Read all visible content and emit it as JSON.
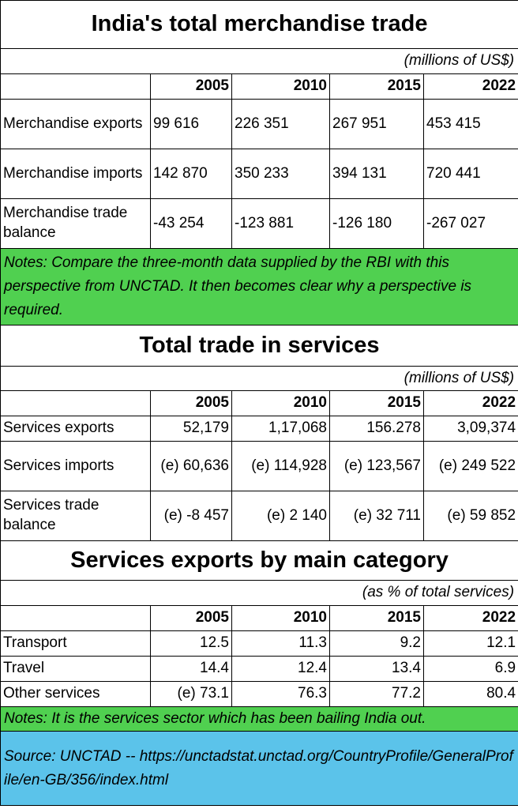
{
  "merch": {
    "title": "India's total merchandise trade",
    "units": "(millions of US$)",
    "years": [
      "2005",
      "2010",
      "2015",
      "2022"
    ],
    "rows": [
      {
        "label": "Merchandise exports",
        "values": [
          "99 616",
          "226 351",
          "267 951",
          "453 415"
        ]
      },
      {
        "label": "Merchandise imports",
        "values": [
          "142 870",
          "350 233",
          "394 131",
          "720 441"
        ]
      },
      {
        "label": "Merchandise trade balance",
        "values": [
          "-43 254",
          "-123 881",
          "-126 180",
          "-267 027"
        ]
      }
    ],
    "notes": "Notes:  Compare the three-month data supplied by the RBI with this perspective from UNCTAD.  It then becomes clear why a perspective is required."
  },
  "services": {
    "title": "Total trade in services",
    "units": "(millions of US$)",
    "years": [
      "2005",
      "2010",
      "2015",
      "2022"
    ],
    "rows": [
      {
        "label": "Services exports",
        "values": [
          "52,179",
          "1,17,068",
          "156.278",
          "3,09,374"
        ]
      },
      {
        "label": "Services imports",
        "values": [
          "(e) 60,636",
          "(e) 114,928",
          "(e) 123,567",
          "(e) 249 522"
        ]
      },
      {
        "label": "Services trade balance",
        "values": [
          "(e) -8 457",
          "(e) 2 140",
          "(e) 32 711",
          "(e) 59 852"
        ]
      }
    ]
  },
  "categories": {
    "title": "Services exports by main category",
    "units": "(as % of total services)",
    "years": [
      "2005",
      "2010",
      "2015",
      "2022"
    ],
    "rows": [
      {
        "label": "Transport",
        "values": [
          "12.5",
          "11.3",
          "9.2",
          "12.1"
        ]
      },
      {
        "label": "Travel",
        "values": [
          "14.4",
          "12.4",
          "13.4",
          "6.9"
        ]
      },
      {
        "label": "Other services",
        "values": [
          "(e) 73.1",
          "76.3",
          "77.2",
          "80.4"
        ]
      }
    ],
    "notes": "Notes: It is the services sector which has been bailing India out."
  },
  "source": "Source: UNCTAD -- https://unctadstat.unctad.org/CountryProfile/GeneralProfile/en-GB/356/index.html",
  "colors": {
    "notes_bg": "#50d050",
    "source_bg": "#5bc3ea"
  }
}
